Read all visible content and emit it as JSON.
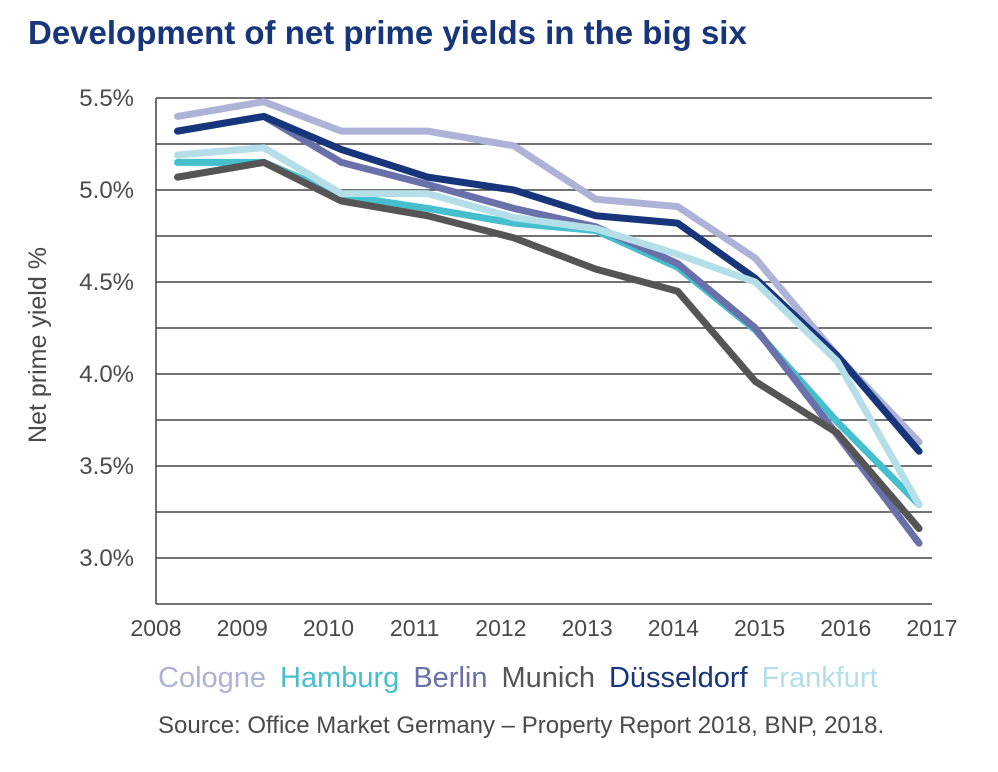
{
  "chart_data": {
    "type": "line",
    "title": "Development of net prime yields in the big six",
    "ylabel": "Net prime yield %",
    "xlabel": "",
    "xlim": [
      2008,
      2017
    ],
    "ylim": [
      2.75,
      5.5
    ],
    "x_ticks": [
      "2008",
      "2009",
      "2010",
      "2011",
      "2012",
      "2013",
      "2014",
      "2015",
      "2016",
      "2017"
    ],
    "y_ticks": [
      {
        "value": 5.5,
        "label": "5.5%"
      },
      {
        "value": 5.0,
        "label": "5.0%"
      },
      {
        "value": 4.5,
        "label": "4.5%"
      },
      {
        "value": 4.0,
        "label": "4.0%"
      },
      {
        "value": 3.5,
        "label": "3.5%"
      },
      {
        "value": 3.0,
        "label": "3.0%"
      }
    ],
    "gridlines_y": [
      5.5,
      5.25,
      5.0,
      4.75,
      4.5,
      4.25,
      4.0,
      3.75,
      3.5,
      3.25,
      3.0
    ],
    "grid": true,
    "legend_position": "bottom",
    "x": [
      2008.25,
      2009.25,
      2010.15,
      2011.15,
      2012.15,
      2013.1,
      2014.05,
      2014.95,
      2015.9,
      2016.85
    ],
    "series": [
      {
        "name": "Cologne",
        "color": "#aeb2d6",
        "values": [
          5.4,
          5.48,
          5.32,
          5.32,
          5.24,
          4.95,
          4.91,
          4.63,
          4.1,
          3.63
        ]
      },
      {
        "name": "Hamburg",
        "color": "#45bece",
        "values": [
          5.15,
          5.15,
          4.97,
          4.9,
          4.82,
          4.78,
          4.58,
          4.24,
          3.74,
          3.29
        ]
      },
      {
        "name": "Berlin",
        "color": "#6a70aa",
        "values": [
          5.32,
          5.4,
          5.15,
          5.03,
          4.9,
          4.8,
          4.6,
          4.25,
          3.67,
          3.08
        ]
      },
      {
        "name": "Munich",
        "color": "#555555",
        "values": [
          5.07,
          5.15,
          4.94,
          4.86,
          4.74,
          4.57,
          4.45,
          3.96,
          3.68,
          3.16
        ]
      },
      {
        "name": "Düsseldorf",
        "color": "#17357a",
        "values": [
          5.32,
          5.4,
          5.22,
          5.07,
          5.0,
          4.86,
          4.82,
          4.52,
          4.1,
          3.58
        ]
      },
      {
        "name": "Frankfurt",
        "color": "#b5dfe8",
        "values": [
          5.19,
          5.23,
          4.98,
          4.98,
          4.85,
          4.79,
          4.65,
          4.5,
          4.07,
          3.29
        ]
      }
    ],
    "source": "Source: Office Market Germany – Property Report 2018, BNP, 2018."
  }
}
